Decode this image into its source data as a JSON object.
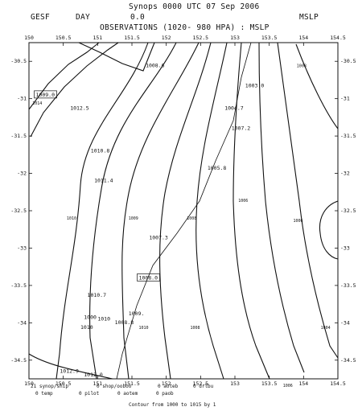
{
  "header": {
    "title": "Synops 0000 UTC 07 Sep 2006",
    "left_code": "GESF",
    "period": "DAY",
    "value": "0.0",
    "subtitle": "OBSERVATIONS (1020- 980 HPA) : MSLP",
    "field": "MSLP"
  },
  "map": {
    "x_ticks": [
      "150",
      "150.5",
      "151",
      "151.5",
      "152",
      "152.5",
      "153",
      "153.5",
      "154",
      "154.5"
    ],
    "y_ticks": [
      "-30.5",
      "-31",
      "-31.5",
      "-32",
      "-32.5",
      "-33",
      "-33.5",
      "-34",
      "-34.5"
    ],
    "x_range": [
      150,
      154.5
    ],
    "y_range": [
      -30.25,
      -34.75
    ],
    "contour_labels": [
      {
        "text": "1008.6",
        "lon": 151.7,
        "lat": -30.58
      },
      {
        "text": "1009.0",
        "lon": 150.1,
        "lat": -30.97,
        "boxed": true
      },
      {
        "text": "1014",
        "lon": 150.05,
        "lat": -31.08,
        "small": true
      },
      {
        "text": "1012.5",
        "lon": 150.6,
        "lat": -31.15
      },
      {
        "text": "1008",
        "lon": 153.9,
        "lat": -30.58,
        "small": true
      },
      {
        "text": "1003.0",
        "lon": 153.15,
        "lat": -30.85
      },
      {
        "text": "1004.7",
        "lon": 152.85,
        "lat": -31.15
      },
      {
        "text": "1007.2",
        "lon": 152.95,
        "lat": -31.42
      },
      {
        "text": "1010.8",
        "lon": 150.9,
        "lat": -31.72
      },
      {
        "text": "1005.8",
        "lon": 152.6,
        "lat": -31.95
      },
      {
        "text": "1011.4",
        "lon": 150.95,
        "lat": -32.12
      },
      {
        "text": "1006",
        "lon": 153.05,
        "lat": -32.38,
        "small": true
      },
      {
        "text": "1010",
        "lon": 150.55,
        "lat": -32.62,
        "small": true
      },
      {
        "text": "1009",
        "lon": 151.45,
        "lat": -32.62,
        "small": true
      },
      {
        "text": "1008",
        "lon": 152.3,
        "lat": -32.62,
        "small": true
      },
      {
        "text": "1006",
        "lon": 153.85,
        "lat": -32.65,
        "small": true
      },
      {
        "text": "1007.3",
        "lon": 151.75,
        "lat": -32.88
      },
      {
        "text": "1008.0",
        "lon": 151.6,
        "lat": -33.42,
        "boxed": true
      },
      {
        "text": "1010.7",
        "lon": 150.85,
        "lat": -33.65
      },
      {
        "text": "1009.",
        "lon": 151.45,
        "lat": -33.9
      },
      {
        "text": "1000",
        "lon": 150.8,
        "lat": -33.95
      },
      {
        "text": "1010",
        "lon": 151.0,
        "lat": -33.97
      },
      {
        "text": "1008.8",
        "lon": 151.25,
        "lat": -34.02
      },
      {
        "text": "1010",
        "lon": 150.75,
        "lat": -34.08
      },
      {
        "text": "1010",
        "lon": 151.6,
        "lat": -34.08,
        "small": true
      },
      {
        "text": "1008",
        "lon": 152.35,
        "lat": -34.08,
        "small": true
      },
      {
        "text": "1004",
        "lon": 154.25,
        "lat": -34.08,
        "small": true
      },
      {
        "text": "1012.9",
        "lon": 150.45,
        "lat": -34.67
      },
      {
        "text": "1012.0",
        "lon": 150.8,
        "lat": -34.72
      },
      {
        "text": "1006",
        "lon": 153.7,
        "lat": -34.86,
        "small": true
      }
    ]
  },
  "footer": {
    "line1": [
      "21 synop/ship",
      "0 shop/ooboo",
      "0 aoteb",
      "0 drlbu"
    ],
    "line2": [
      "0 temp",
      "0 pilot",
      "0 aotem",
      "0 paob"
    ],
    "contour_note": "Contour from 1000 to 1015 by 1"
  }
}
